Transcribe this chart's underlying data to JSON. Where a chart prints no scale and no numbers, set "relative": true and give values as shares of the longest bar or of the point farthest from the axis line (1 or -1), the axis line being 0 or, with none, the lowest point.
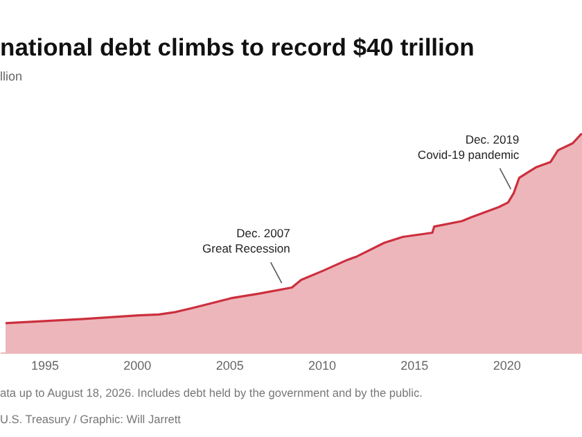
{
  "chart_data": {
    "type": "area",
    "title": "national debt climbs to record $40 trillion",
    "subtitle": "llion",
    "relative": true,
    "x": [
      1992.9,
      1997.1,
      2000.1,
      2001.2,
      2002.1,
      2003.1,
      2005.1,
      2006.6,
      2008.4,
      2008.9,
      2010.1,
      2011.4,
      2011.9,
      2013.4,
      2014.4,
      2016.0,
      2016.1,
      2017.6,
      2018.1,
      2019.6,
      2020.1,
      2020.4,
      2020.7,
      2021.6,
      2022.4,
      2022.8,
      2023.6,
      2024.1
    ],
    "series": [
      {
        "color": "#cc2f3d",
        "values": [
          0.133,
          0.152,
          0.169,
          0.173,
          0.184,
          0.204,
          0.247,
          0.268,
          0.296,
          0.331,
          0.373,
          0.422,
          0.437,
          0.5,
          0.527,
          0.546,
          0.574,
          0.599,
          0.616,
          0.663,
          0.684,
          0.726,
          0.796,
          0.844,
          0.869,
          0.922,
          0.954,
          1
        ]
      }
    ],
    "xlim": [
      1992.6,
      2024.1
    ],
    "xticks": [
      1995,
      2000,
      2005,
      2010,
      2015,
      2020
    ],
    "annotations": [
      "Dec. 2007",
      {
        "text": "Great Recession",
        "x": 2008.0,
        "y": 0.297
      },
      "Dec. 2019",
      {
        "text": "Covid-19 pandemic",
        "x": 2020.4,
        "y": 0.726
      },
      "ata up to August 18, 2026. Includes debt held by the government and by the public.",
      "U.S. Treasury / Graphic: Will Jarrett"
    ]
  }
}
